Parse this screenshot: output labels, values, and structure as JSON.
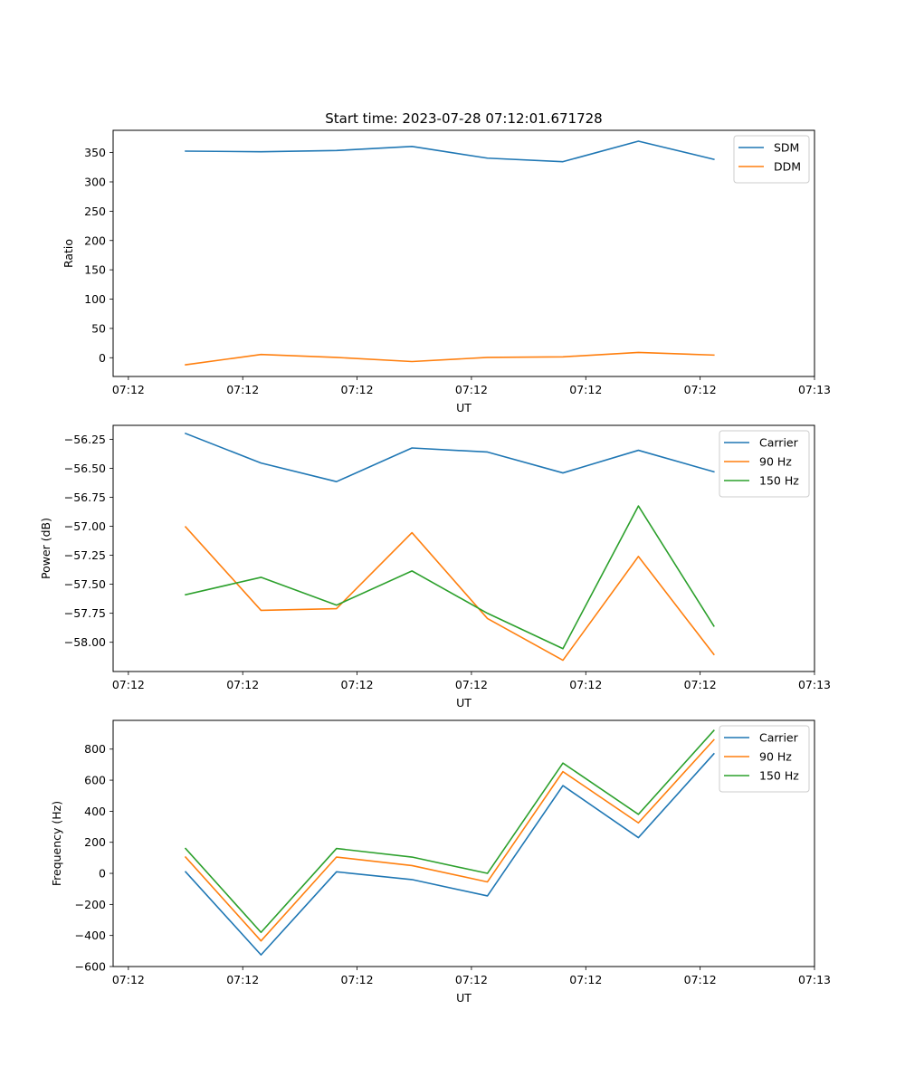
{
  "title": "Start time: 2023-07-28 07:12:01.671728",
  "colors": {
    "c0": "#1f77b4",
    "c1": "#ff7f0e",
    "c2": "#2ca02c"
  },
  "chart_data": [
    {
      "type": "line",
      "title": "Start time: 2023-07-28 07:12:01.671728",
      "xlabel": "UT",
      "ylabel": "Ratio",
      "x_ticks": [
        "07:12",
        "07:12",
        "07:12",
        "07:12",
        "07:12",
        "07:12",
        "07:13"
      ],
      "x_tick_values": [
        0,
        1.5,
        3,
        4.5,
        6,
        7.5,
        9
      ],
      "xlim": [
        -0.2,
        9
      ],
      "x": [
        0.75,
        1.74,
        2.73,
        3.72,
        4.71,
        5.7,
        6.69,
        7.68
      ],
      "ylim": [
        -32,
        388
      ],
      "y_ticks": [
        0,
        50,
        100,
        150,
        200,
        250,
        300,
        350
      ],
      "legend": "upper right",
      "series": [
        {
          "name": "SDM",
          "color": "#1f77b4",
          "values": [
            352.5,
            351.5,
            353.5,
            360.5,
            340.5,
            334.5,
            369.5,
            338.5
          ]
        },
        {
          "name": "DDM",
          "color": "#ff7f0e",
          "values": [
            -12,
            5.5,
            0.5,
            -6.5,
            0.5,
            1.5,
            9,
            4.5
          ]
        }
      ]
    },
    {
      "type": "line",
      "title": "",
      "xlabel": "UT",
      "ylabel": "Power (dB)",
      "x_ticks": [
        "07:12",
        "07:12",
        "07:12",
        "07:12",
        "07:12",
        "07:12",
        "07:13"
      ],
      "x_tick_values": [
        0,
        1.5,
        3,
        4.5,
        6,
        7.5,
        9
      ],
      "xlim": [
        -0.2,
        9
      ],
      "x": [
        0.75,
        1.74,
        2.73,
        3.72,
        4.71,
        5.7,
        6.69,
        7.68
      ],
      "ylim": [
        -58.252,
        -56.13
      ],
      "y_ticks": [
        -58.0,
        -57.75,
        -57.5,
        -57.25,
        -57.0,
        -56.75,
        -56.5,
        -56.25
      ],
      "y_tick_labels": [
        "−58.00",
        "−57.75",
        "−57.50",
        "−57.25",
        "−57.00",
        "−56.75",
        "−56.50",
        "−56.25"
      ],
      "legend": "upper right",
      "series": [
        {
          "name": "Carrier",
          "color": "#1f77b4",
          "values": [
            -56.2,
            -56.455,
            -56.615,
            -56.325,
            -56.36,
            -56.54,
            -56.345,
            -56.53
          ]
        },
        {
          "name": "90 Hz",
          "color": "#ff7f0e",
          "values": [
            -57.005,
            -57.725,
            -57.71,
            -57.055,
            -57.795,
            -58.155,
            -57.26,
            -58.105
          ]
        },
        {
          "name": "150 Hz",
          "color": "#2ca02c",
          "values": [
            -57.59,
            -57.44,
            -57.68,
            -57.385,
            -57.75,
            -58.055,
            -56.825,
            -57.86
          ]
        }
      ]
    },
    {
      "type": "line",
      "title": "",
      "xlabel": "UT",
      "ylabel": "Frequency (Hz)",
      "x_ticks": [
        "07:12",
        "07:12",
        "07:12",
        "07:12",
        "07:12",
        "07:12",
        "07:13"
      ],
      "x_tick_values": [
        0,
        1.5,
        3,
        4.5,
        6,
        7.5,
        9
      ],
      "xlim": [
        -0.2,
        9
      ],
      "x": [
        0.75,
        1.74,
        2.73,
        3.72,
        4.71,
        5.7,
        6.69,
        7.68
      ],
      "ylim": [
        -600,
        985
      ],
      "y_ticks": [
        -600,
        -400,
        -200,
        0,
        200,
        400,
        600,
        800
      ],
      "y_tick_labels": [
        "−600",
        "−400",
        "−200",
        "0",
        "200",
        "400",
        "600",
        "800"
      ],
      "legend": "upper right",
      "series": [
        {
          "name": "Carrier",
          "color": "#1f77b4",
          "values": [
            10,
            -525,
            10,
            -40,
            -145,
            565,
            230,
            770
          ]
        },
        {
          "name": "90 Hz",
          "color": "#ff7f0e",
          "values": [
            105,
            -435,
            105,
            50,
            -55,
            655,
            325,
            860
          ]
        },
        {
          "name": "150 Hz",
          "color": "#2ca02c",
          "values": [
            160,
            -380,
            160,
            105,
            0,
            710,
            380,
            920
          ]
        }
      ]
    }
  ]
}
